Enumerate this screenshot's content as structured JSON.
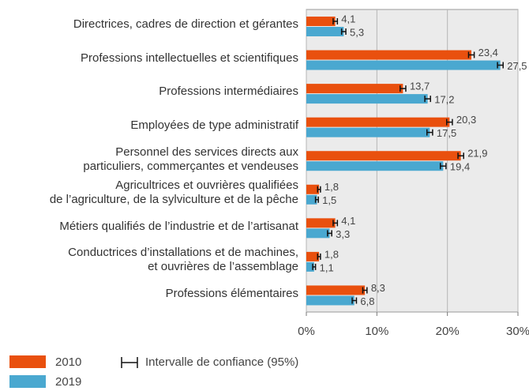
{
  "chart_data": {
    "type": "bar",
    "orientation": "horizontal",
    "categories": [
      "Directrices, cadres de direction et gérantes",
      "Professions intellectuelles et scientifiques",
      "Professions intermédiaires",
      "Employées de type administratif",
      "Personnel des services directs aux\nparticuliers, commerçantes et vendeuses",
      "Agricultrices et ouvrières qualifiées\nde l’agriculture, de la sylviculture et de la pêche",
      "Métiers qualifiés de l’industrie et de l’artisanat",
      "Conductrices d’installations et de machines,\net ouvrières de l’assemblage",
      "Professions élémentaires"
    ],
    "series": [
      {
        "name": "2010",
        "color": "#e9500e",
        "values": [
          4.1,
          23.4,
          13.7,
          20.3,
          21.9,
          1.8,
          4.1,
          1.8,
          8.3
        ],
        "value_labels": [
          "4,1",
          "23,4",
          "13,7",
          "20,3",
          "21,9",
          "1,8",
          "4,1",
          "1,8",
          "8,3"
        ],
        "errors": [
          0.3,
          0.4,
          0.4,
          0.4,
          0.4,
          0.2,
          0.3,
          0.2,
          0.3
        ]
      },
      {
        "name": "2019",
        "color": "#4aa8d0",
        "values": [
          5.3,
          27.5,
          17.2,
          17.5,
          19.4,
          1.5,
          3.3,
          1.1,
          6.8
        ],
        "value_labels": [
          "5,3",
          "27,5",
          "17,2",
          "17,5",
          "19,4",
          "1,5",
          "3,3",
          "1,1",
          "6,8"
        ],
        "errors": [
          0.3,
          0.4,
          0.4,
          0.4,
          0.4,
          0.2,
          0.3,
          0.2,
          0.3
        ]
      }
    ],
    "xlim": [
      0,
      30
    ],
    "xticks": [
      {
        "value": 0,
        "label": "0%"
      },
      {
        "value": 10,
        "label": "10%"
      },
      {
        "value": 20,
        "label": "20%"
      },
      {
        "value": 30,
        "label": "30%"
      }
    ],
    "grid": true,
    "ci_label": "Intervalle de confiance (95%)"
  }
}
